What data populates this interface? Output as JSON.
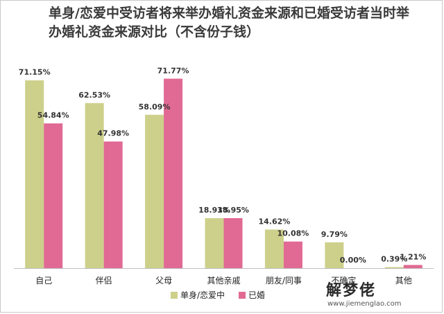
{
  "chart_data": {
    "type": "bar",
    "title": "单身/恋爱中受访者将来举办婚礼资金来源和已婚受访者当时举办婚礼资金来源对比（不含份子钱）",
    "categories": [
      "自己",
      "伴侣",
      "父母",
      "其他亲戚",
      "朋友/同事",
      "不确定",
      "其他"
    ],
    "series": [
      {
        "name": "单身/恋爱中",
        "color": "#cdd08a",
        "values": [
          71.15,
          62.53,
          58.09,
          18.93,
          14.62,
          9.79,
          0.39
        ],
        "labels": [
          "71.15%",
          "62.53%",
          "58.09%",
          "18.93%",
          "14.62%",
          "9.79%",
          "0.39%"
        ]
      },
      {
        "name": "已婚",
        "color": "#e06a93",
        "values": [
          54.84,
          47.98,
          71.77,
          18.95,
          10.08,
          0.0,
          1.21
        ],
        "labels": [
          "54.84%",
          "47.98%",
          "71.77%",
          "18.95%",
          "10.08%",
          "0.00%",
          "1.21%"
        ]
      }
    ],
    "ylim": [
      0,
      80
    ],
    "grid": false,
    "legend": "bottom"
  },
  "watermark": {
    "text": "解梦佬",
    "url": "www.jiemenglao.com"
  }
}
